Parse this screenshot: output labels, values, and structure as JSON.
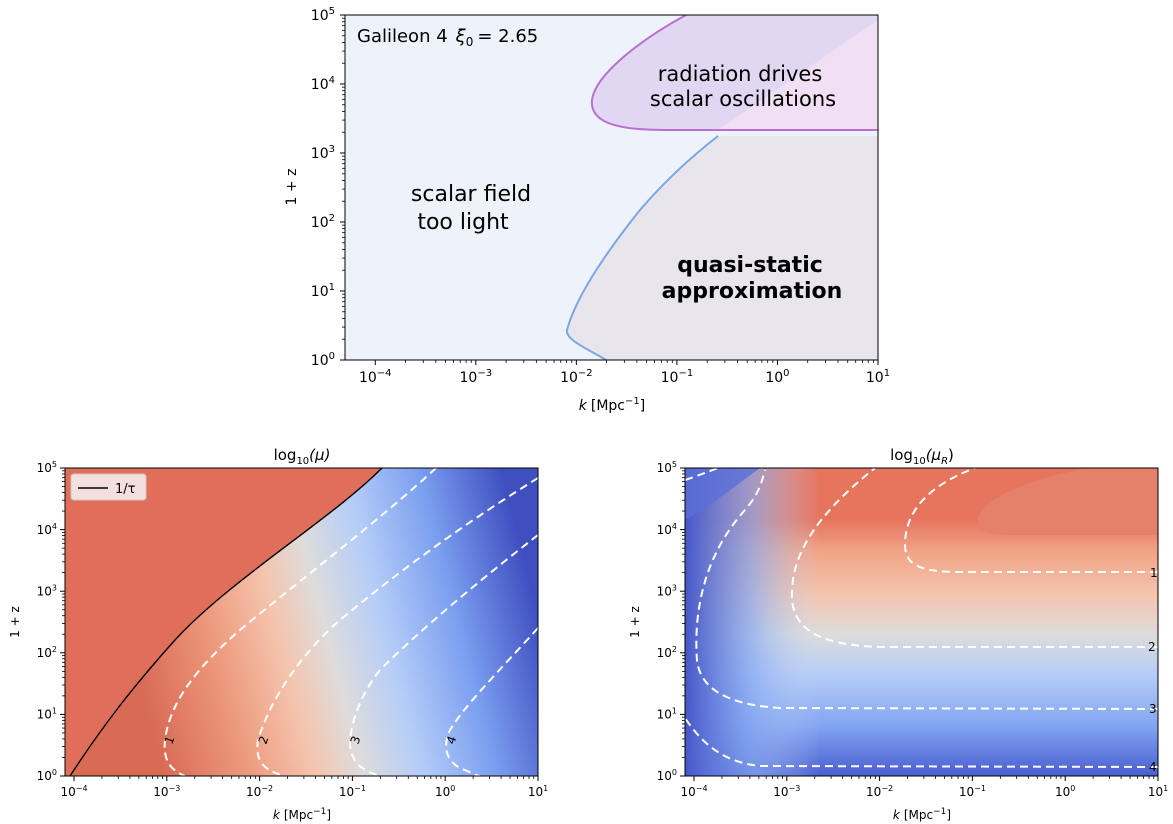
{
  "top": {
    "annotation_prefix": "Galileon 4",
    "annotation_symbol": "ξ",
    "annotation_sub": "0",
    "annotation_value": "= 2.65",
    "region_purple": [
      "radiation drives",
      "scalar oscillations"
    ],
    "region_blue": [
      "scalar field",
      "too light"
    ],
    "region_gray": [
      "quasi-static",
      "approximation"
    ],
    "ylabel": "1 + z",
    "xlabel_k": "k",
    "xlabel_unit": "[Mpc",
    "xlabel_exp": "−1",
    "xlabel_close": "]",
    "colors": {
      "purple": "#b96fd0",
      "purple_text": "#8b1a8b",
      "blue": "#7aa6e6",
      "blue_text": "#4169e1",
      "gray_text": "#6e6e6e"
    }
  },
  "bottom_left": {
    "title": "log",
    "title_sub": "10",
    "title_arg": "(μ)",
    "legend_label": "1/τ",
    "ylabel": "1 + z",
    "contour_labels": [
      "1",
      "2",
      "3",
      "4"
    ]
  },
  "bottom_right": {
    "title": "log",
    "title_sub": "10",
    "title_arg": "(μ",
    "title_arg_sub": "R",
    "title_close": ")",
    "ylabel": "1 + z",
    "contour_labels": [
      "1",
      "2",
      "3",
      "4"
    ]
  },
  "axes": {
    "x_ticks": [
      {
        "base": "10",
        "exp": "−4"
      },
      {
        "base": "10",
        "exp": "−3"
      },
      {
        "base": "10",
        "exp": "−2"
      },
      {
        "base": "10",
        "exp": "−1"
      },
      {
        "base": "10",
        "exp": "0"
      },
      {
        "base": "10",
        "exp": "1"
      }
    ],
    "y_ticks": [
      {
        "base": "10",
        "exp": "0"
      },
      {
        "base": "10",
        "exp": "1"
      },
      {
        "base": "10",
        "exp": "2"
      },
      {
        "base": "10",
        "exp": "3"
      },
      {
        "base": "10",
        "exp": "4"
      },
      {
        "base": "10",
        "exp": "5"
      }
    ]
  },
  "chart_data": [
    {
      "type": "area",
      "x_scale": "log",
      "y_scale": "log",
      "xlim": [
        5e-05,
        10
      ],
      "ylim": [
        1,
        100000
      ],
      "regions": [
        {
          "boundary_k": [
            0.035,
            0.025,
            0.013,
            0.011,
            0.015,
            0.03,
            0.06,
            0.12,
            0.3
          ],
          "boundary_1pz": [
            1,
            1.3,
            2.2,
            3,
            6,
            20,
            70,
            250,
            1700
          ]
        },
        {
          "boundary_k": [
            0.15,
            0.05,
            0.025,
            0.02,
            0.03,
            0.08,
            0.3,
            10
          ],
          "boundary_1pz": [
            100000,
            40000,
            15000,
            6000,
            3200,
            2400,
            2200,
            2200
          ]
        }
      ]
    },
    {
      "type": "heatmap",
      "x_scale": "log",
      "y_scale": "log",
      "xlim": [
        8e-05,
        10
      ],
      "ylim": [
        1,
        100000
      ],
      "contour_levels": [
        1,
        2,
        3,
        4
      ],
      "series": [
        {
          "name": "1/τ",
          "k": [
            0.0001,
            0.00015,
            0.0003,
            0.001,
            0.003,
            0.01,
            0.03,
            0.1
          ],
          "one_plus_z": [
            1,
            3,
            15,
            150,
            1000,
            6000,
            30000,
            100000
          ]
        }
      ]
    },
    {
      "type": "heatmap",
      "x_scale": "log",
      "y_scale": "log",
      "xlim": [
        8e-05,
        10
      ],
      "ylim": [
        1,
        100000
      ],
      "contour_levels": [
        1,
        2,
        3,
        4
      ],
      "contour_plateaus_1pz": [
        2000,
        130,
        12,
        1.5
      ]
    }
  ]
}
